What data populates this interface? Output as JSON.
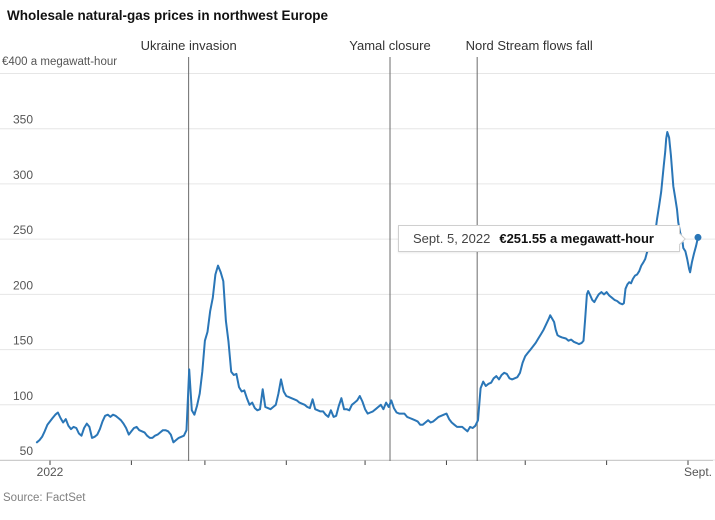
{
  "title": "Wholesale natural-gas prices in northwest Europe",
  "source": "Source: FactSet",
  "tooltip": {
    "date": "Sept. 5, 2022",
    "value": "€251.55 a megawatt-hour"
  },
  "colors": {
    "line": "#2a76b7",
    "grid": "#e6e6e6",
    "axis": "#cccccc",
    "tick": "#444444",
    "event_line": "#6b6b6b",
    "muted_text": "#555555"
  },
  "chart_data": {
    "type": "line",
    "title": "Wholesale natural-gas prices in northwest Europe",
    "y_top_label": "€400 a megawatt-hour",
    "ylabel": "price in euros per megawatt-hour",
    "ylim": [
      50,
      400
    ],
    "y_ticks": [
      50,
      100,
      150,
      200,
      250,
      300,
      350
    ],
    "y_grid_top": 400,
    "grid": "horizontal only",
    "x_unit": "days since Jan 1, 2022",
    "x_start_label": "2022",
    "x_end_label": "Sept.",
    "x_month_tick_days": [
      0,
      31,
      59,
      90,
      120,
      151,
      181,
      212,
      243
    ],
    "events": [
      {
        "label": "Ukraine invasion",
        "day": 52.8,
        "label_dx": 0
      },
      {
        "label": "Yamal closure",
        "day": 129.5,
        "label_dx": 0
      },
      {
        "label": "Nord Stream flows fall",
        "day": 162.7,
        "label_dx": 52
      }
    ],
    "last_point": {
      "date": "Sept. 5, 2022",
      "price": 251.55
    },
    "series": [
      {
        "name": "Wholesale natural-gas price (EUR/MWh)",
        "points": [
          [
            -5,
            66
          ],
          [
            -4,
            68
          ],
          [
            -3,
            71
          ],
          [
            -2,
            76
          ],
          [
            -1,
            82
          ],
          [
            0,
            85
          ],
          [
            1,
            88
          ],
          [
            2,
            91
          ],
          [
            3,
            93
          ],
          [
            4,
            88
          ],
          [
            5,
            84
          ],
          [
            6,
            87
          ],
          [
            7,
            81
          ],
          [
            8,
            78
          ],
          [
            9,
            80
          ],
          [
            10,
            79
          ],
          [
            11,
            74
          ],
          [
            12,
            72
          ],
          [
            13,
            79
          ],
          [
            14,
            83
          ],
          [
            15,
            80
          ],
          [
            16,
            70
          ],
          [
            17,
            71
          ],
          [
            18,
            73
          ],
          [
            19,
            78
          ],
          [
            20,
            85
          ],
          [
            21,
            90
          ],
          [
            22,
            91
          ],
          [
            23,
            89
          ],
          [
            24,
            91
          ],
          [
            25,
            90
          ],
          [
            26,
            88
          ],
          [
            27,
            86
          ],
          [
            28,
            83
          ],
          [
            29,
            79
          ],
          [
            30,
            73
          ],
          [
            31,
            76
          ],
          [
            32,
            79
          ],
          [
            33,
            80
          ],
          [
            34,
            77
          ],
          [
            35,
            76
          ],
          [
            36,
            75
          ],
          [
            37,
            72
          ],
          [
            38,
            70
          ],
          [
            39,
            70
          ],
          [
            40,
            72
          ],
          [
            41,
            73
          ],
          [
            42,
            75
          ],
          [
            43,
            77
          ],
          [
            44,
            77
          ],
          [
            45,
            76
          ],
          [
            46,
            73
          ],
          [
            47,
            66
          ],
          [
            48,
            68
          ],
          [
            49,
            70
          ],
          [
            50,
            71
          ],
          [
            51,
            72
          ],
          [
            52,
            77
          ],
          [
            53,
            132
          ],
          [
            54,
            95
          ],
          [
            55,
            91
          ],
          [
            56,
            99
          ],
          [
            57,
            110
          ],
          [
            58,
            130
          ],
          [
            59,
            158
          ],
          [
            60,
            166
          ],
          [
            61,
            185
          ],
          [
            62,
            197
          ],
          [
            63,
            218
          ],
          [
            64,
            226
          ],
          [
            65,
            220
          ],
          [
            66,
            212
          ],
          [
            67,
            176
          ],
          [
            68,
            157
          ],
          [
            69,
            130
          ],
          [
            70,
            127
          ],
          [
            71,
            128
          ],
          [
            72,
            116
          ],
          [
            73,
            112
          ],
          [
            74,
            113
          ],
          [
            75,
            106
          ],
          [
            76,
            100
          ],
          [
            77,
            102
          ],
          [
            78,
            97
          ],
          [
            79,
            95
          ],
          [
            80,
            96
          ],
          [
            81,
            114
          ],
          [
            82,
            98
          ],
          [
            83,
            97
          ],
          [
            84,
            96
          ],
          [
            85,
            98
          ],
          [
            86,
            100
          ],
          [
            87,
            110
          ],
          [
            88,
            123
          ],
          [
            89,
            112
          ],
          [
            90,
            108
          ],
          [
            91,
            107
          ],
          [
            92,
            106
          ],
          [
            93,
            105
          ],
          [
            94,
            104
          ],
          [
            95,
            102
          ],
          [
            96,
            101
          ],
          [
            97,
            100
          ],
          [
            98,
            98
          ],
          [
            99,
            97
          ],
          [
            100,
            105
          ],
          [
            101,
            96
          ],
          [
            102,
            95
          ],
          [
            103,
            94
          ],
          [
            104,
            94
          ],
          [
            105,
            91
          ],
          [
            106,
            89
          ],
          [
            107,
            95
          ],
          [
            108,
            89
          ],
          [
            109,
            90
          ],
          [
            110,
            99
          ],
          [
            111,
            106
          ],
          [
            112,
            96
          ],
          [
            113,
            96
          ],
          [
            114,
            95
          ],
          [
            115,
            100
          ],
          [
            116,
            102
          ],
          [
            117,
            104
          ],
          [
            118,
            108
          ],
          [
            119,
            103
          ],
          [
            120,
            96
          ],
          [
            121,
            92
          ],
          [
            122,
            93
          ],
          [
            123,
            94
          ],
          [
            124,
            96
          ],
          [
            125,
            98
          ],
          [
            126,
            100
          ],
          [
            127,
            96
          ],
          [
            128,
            102
          ],
          [
            129,
            98
          ],
          [
            130,
            104
          ],
          [
            131,
            97
          ],
          [
            132,
            93
          ],
          [
            133,
            92
          ],
          [
            134,
            92
          ],
          [
            135,
            92
          ],
          [
            136,
            89
          ],
          [
            137,
            88
          ],
          [
            138,
            87
          ],
          [
            139,
            86
          ],
          [
            140,
            85
          ],
          [
            141,
            82
          ],
          [
            142,
            82
          ],
          [
            143,
            84
          ],
          [
            144,
            86
          ],
          [
            145,
            84
          ],
          [
            146,
            85
          ],
          [
            147,
            87
          ],
          [
            148,
            89
          ],
          [
            149,
            90
          ],
          [
            150,
            91
          ],
          [
            151,
            92
          ],
          [
            152,
            87
          ],
          [
            153,
            84
          ],
          [
            154,
            82
          ],
          [
            155,
            80
          ],
          [
            156,
            80
          ],
          [
            157,
            80
          ],
          [
            158,
            78
          ],
          [
            159,
            76
          ],
          [
            160,
            80
          ],
          [
            161,
            79
          ],
          [
            162,
            81
          ],
          [
            163,
            86
          ],
          [
            164,
            115
          ],
          [
            165,
            121
          ],
          [
            166,
            117
          ],
          [
            167,
            119
          ],
          [
            168,
            120
          ],
          [
            169,
            124
          ],
          [
            170,
            126
          ],
          [
            171,
            123
          ],
          [
            172,
            127
          ],
          [
            173,
            129
          ],
          [
            174,
            128
          ],
          [
            175,
            124
          ],
          [
            176,
            123
          ],
          [
            177,
            124
          ],
          [
            178,
            125
          ],
          [
            179,
            129
          ],
          [
            180,
            138
          ],
          [
            181,
            144
          ],
          [
            182,
            147
          ],
          [
            183,
            150
          ],
          [
            184,
            153
          ],
          [
            185,
            156
          ],
          [
            186,
            160
          ],
          [
            187,
            164
          ],
          [
            188,
            168
          ],
          [
            189,
            173
          ],
          [
            190,
            178
          ],
          [
            190.5,
            181
          ],
          [
            191,
            179
          ],
          [
            192,
            175
          ],
          [
            192.6,
            168
          ],
          [
            193.3,
            163
          ],
          [
            194,
            162
          ],
          [
            195,
            161
          ],
          [
            196.5,
            160
          ],
          [
            197.5,
            158
          ],
          [
            198.5,
            159
          ],
          [
            199.5,
            157
          ],
          [
            200.5,
            156
          ],
          [
            201.5,
            155
          ],
          [
            202.5,
            156
          ],
          [
            203.2,
            158
          ],
          [
            203.8,
            177
          ],
          [
            204.5,
            200
          ],
          [
            205,
            203
          ],
          [
            205.8,
            199
          ],
          [
            206.5,
            195
          ],
          [
            207.3,
            193
          ],
          [
            208,
            196
          ],
          [
            209,
            200
          ],
          [
            210,
            202
          ],
          [
            211,
            200
          ],
          [
            212,
            202
          ],
          [
            213,
            199
          ],
          [
            214,
            197
          ],
          [
            215,
            195
          ],
          [
            216,
            194
          ],
          [
            217,
            192
          ],
          [
            218,
            191
          ],
          [
            218.6,
            192
          ],
          [
            219.2,
            205
          ],
          [
            219.9,
            209
          ],
          [
            220.6,
            211
          ],
          [
            221.3,
            210
          ],
          [
            222,
            214
          ],
          [
            222.8,
            217
          ],
          [
            223.6,
            218
          ],
          [
            224.4,
            221
          ],
          [
            225.2,
            226
          ],
          [
            226,
            229
          ],
          [
            226.7,
            232
          ],
          [
            227.4,
            238
          ],
          [
            228.2,
            243
          ],
          [
            229,
            247
          ],
          [
            229.7,
            253
          ],
          [
            230.1,
            250
          ],
          [
            230.5,
            255
          ],
          [
            231.2,
            268
          ],
          [
            232,
            280
          ],
          [
            232.8,
            293
          ],
          [
            233.3,
            305
          ],
          [
            233.8,
            317
          ],
          [
            234.3,
            329
          ],
          [
            234.7,
            341
          ],
          [
            235.1,
            347
          ],
          [
            235.8,
            342
          ],
          [
            236.5,
            326
          ],
          [
            237,
            311
          ],
          [
            237.4,
            298
          ],
          [
            238.1,
            288
          ],
          [
            238.8,
            277
          ],
          [
            239.3,
            265
          ],
          [
            240,
            256
          ],
          [
            240.8,
            250
          ],
          [
            241.2,
            242
          ],
          [
            242,
            239
          ],
          [
            242.7,
            232
          ],
          [
            243.4,
            223
          ],
          [
            243.8,
            220
          ],
          [
            244.5,
            229
          ],
          [
            245.3,
            237
          ],
          [
            246.1,
            244
          ],
          [
            246.8,
            251.55
          ]
        ]
      }
    ]
  }
}
